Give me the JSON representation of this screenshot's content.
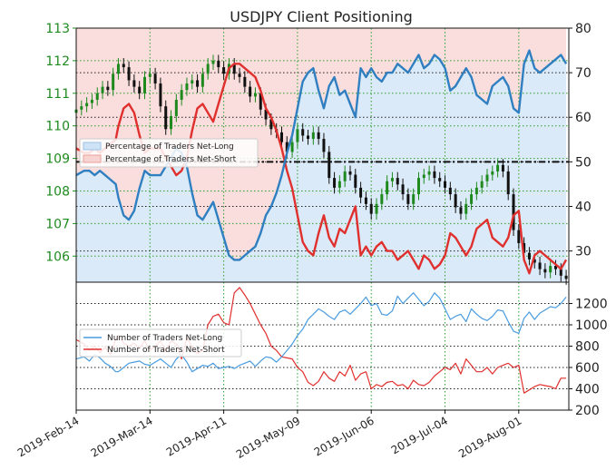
{
  "chart_data": [
    {
      "type": "line",
      "title": "USDJPY Client Positioning",
      "left_axis": {
        "ylim": [
          105.2,
          113.0
        ],
        "ticks": [
          "106",
          "107",
          "108",
          "109",
          "110",
          "111",
          "112",
          "113"
        ],
        "tick_color": "#1e8a1e"
      },
      "right_axis": {
        "ylim": [
          23,
          80
        ],
        "ticks": [
          "30",
          "40",
          "50",
          "60",
          "70",
          "80"
        ]
      },
      "x_ticks": [
        "2019-Feb-14",
        "2019-Mar-14",
        "2019-Apr-11",
        "2019-May-09",
        "2019-Jun-06",
        "2019-Jul-04",
        "2019-Aug-01"
      ],
      "x_tick_days": [
        0,
        28,
        56,
        84,
        112,
        140,
        168
      ],
      "x_range_days": [
        0,
        187
      ],
      "reference_line": 50,
      "grid": true,
      "legend": {
        "placement": "center-left",
        "entries": [
          "Percentage of Traders Net-Long",
          "Percentage of Traders Net-Short"
        ]
      },
      "colors": {
        "net_long": "#2f7fc1",
        "net_short": "#e0302e",
        "long_fill": "#cfe3f6",
        "short_fill": "#f7d3d1",
        "candle_up": "#1e8a1e",
        "candle_down": "#111111",
        "grid": "#2ca02c"
      },
      "series": [
        {
          "name": "Percentage of Traders Net-Long",
          "x": [
            0,
            3,
            5,
            7,
            9,
            11,
            13,
            15,
            16,
            18,
            20,
            22,
            24,
            26,
            28,
            30,
            32,
            34,
            36,
            38,
            40,
            42,
            44,
            46,
            48,
            50,
            52,
            54,
            56,
            58,
            60,
            62,
            64,
            66,
            68,
            70,
            72,
            74,
            76,
            78,
            80,
            82,
            84,
            86,
            88,
            90,
            92,
            94,
            96,
            98,
            100,
            102,
            104,
            106,
            108,
            110,
            112,
            114,
            116,
            118,
            120,
            122,
            124,
            126,
            128,
            130,
            132,
            134,
            136,
            138,
            140,
            142,
            144,
            146,
            148,
            150,
            152,
            154,
            156,
            158,
            160,
            162,
            164,
            166,
            168,
            170,
            172,
            174,
            176,
            178,
            180,
            182,
            184,
            186
          ],
          "values": [
            47,
            48,
            48,
            47,
            48,
            47,
            46,
            45,
            42,
            38,
            37,
            39,
            44,
            48,
            47,
            47,
            47,
            49,
            51,
            53,
            52,
            49,
            43,
            38,
            37,
            39,
            41,
            37,
            33,
            29,
            28,
            28,
            29,
            30,
            31,
            34,
            38,
            40,
            43,
            47,
            52,
            56,
            62,
            68,
            70,
            71,
            66,
            62,
            67,
            69,
            65,
            66,
            63,
            60,
            71,
            69,
            71,
            69,
            68,
            70,
            70,
            72,
            71,
            70,
            72,
            74,
            71,
            72,
            74,
            73,
            71,
            66,
            67,
            69,
            71,
            69,
            65,
            64,
            63,
            67,
            68,
            69,
            67,
            62,
            61,
            72,
            75,
            71,
            70,
            71,
            72,
            73,
            74,
            72
          ]
        },
        {
          "name": "Percentage of Traders Net-Short",
          "x": [
            0,
            3,
            5,
            7,
            9,
            11,
            13,
            15,
            16,
            18,
            20,
            22,
            24,
            26,
            28,
            30,
            32,
            34,
            36,
            38,
            40,
            42,
            44,
            46,
            48,
            50,
            52,
            54,
            56,
            58,
            60,
            62,
            64,
            66,
            68,
            70,
            72,
            74,
            76,
            78,
            80,
            82,
            84,
            86,
            88,
            90,
            92,
            94,
            96,
            98,
            100,
            102,
            104,
            106,
            108,
            110,
            112,
            114,
            116,
            118,
            120,
            122,
            124,
            126,
            128,
            130,
            132,
            134,
            136,
            138,
            140,
            142,
            144,
            146,
            148,
            150,
            152,
            154,
            156,
            158,
            160,
            162,
            164,
            166,
            168,
            170,
            172,
            174,
            176,
            178,
            180,
            182,
            184,
            186
          ],
          "values": [
            53,
            52,
            52,
            53,
            52,
            53,
            54,
            55,
            58,
            62,
            63,
            61,
            56,
            52,
            53,
            53,
            53,
            51,
            49,
            47,
            48,
            51,
            57,
            62,
            63,
            61,
            59,
            63,
            67,
            71,
            72,
            72,
            71,
            70,
            69,
            66,
            62,
            60,
            57,
            53,
            48,
            44,
            38,
            32,
            30,
            29,
            34,
            38,
            33,
            31,
            35,
            34,
            37,
            40,
            29,
            31,
            29,
            31,
            32,
            30,
            30,
            28,
            29,
            30,
            28,
            26,
            29,
            28,
            26,
            27,
            29,
            34,
            33,
            31,
            29,
            31,
            35,
            36,
            37,
            33,
            32,
            31,
            33,
            38,
            39,
            28,
            25,
            29,
            30,
            29,
            28,
            27,
            26,
            28
          ]
        }
      ],
      "price_series": {
        "x": [
          0,
          2,
          4,
          6,
          8,
          10,
          12,
          14,
          16,
          18,
          20,
          22,
          24,
          26,
          28,
          30,
          32,
          34,
          36,
          38,
          40,
          42,
          44,
          46,
          48,
          50,
          52,
          54,
          56,
          58,
          60,
          62,
          64,
          66,
          68,
          70,
          72,
          74,
          76,
          78,
          80,
          82,
          84,
          86,
          88,
          90,
          92,
          94,
          96,
          98,
          100,
          102,
          104,
          106,
          108,
          110,
          112,
          114,
          116,
          118,
          120,
          122,
          124,
          126,
          128,
          130,
          132,
          134,
          136,
          138,
          140,
          142,
          144,
          146,
          148,
          150,
          152,
          154,
          156,
          158,
          160,
          162,
          164,
          166,
          168,
          170,
          172,
          174,
          176,
          178,
          180,
          182,
          184,
          186
        ],
        "close": [
          110.5,
          110.6,
          110.7,
          110.8,
          111.0,
          111.2,
          111.1,
          111.6,
          111.9,
          111.8,
          111.4,
          111.2,
          111.0,
          111.5,
          111.6,
          111.3,
          110.6,
          109.9,
          110.3,
          110.8,
          111.1,
          111.3,
          111.4,
          111.2,
          111.6,
          111.9,
          112.0,
          111.8,
          111.6,
          111.9,
          111.6,
          111.5,
          111.2,
          110.9,
          111.0,
          110.5,
          110.2,
          109.9,
          109.8,
          109.5,
          109.2,
          109.5,
          109.9,
          109.7,
          109.6,
          109.8,
          109.6,
          109.2,
          108.4,
          108.1,
          108.3,
          108.6,
          108.5,
          108.1,
          107.8,
          107.6,
          107.3,
          107.6,
          107.9,
          108.3,
          108.4,
          108.2,
          107.9,
          107.6,
          107.9,
          108.4,
          108.5,
          108.6,
          108.4,
          108.3,
          108.1,
          107.9,
          107.5,
          107.3,
          107.6,
          107.9,
          108.1,
          108.3,
          108.5,
          108.6,
          108.8,
          108.6,
          107.9,
          106.8,
          106.4,
          106.1,
          105.9,
          105.8,
          105.6,
          105.5,
          105.7,
          105.6,
          105.4,
          105.3
        ]
      }
    },
    {
      "type": "line",
      "right_axis": {
        "ylim": [
          200,
          1400
        ],
        "ticks": [
          "200",
          "400",
          "600",
          "800",
          "1000",
          "1200"
        ]
      },
      "legend": {
        "placement": "center-left",
        "entries": [
          "Number of Traders Net-Long",
          "Number of Traders Net-Short"
        ]
      },
      "series": [
        {
          "name": "Number of Traders Net-Long",
          "x": [
            0,
            3,
            5,
            7,
            9,
            11,
            13,
            15,
            16,
            18,
            20,
            22,
            24,
            26,
            28,
            30,
            32,
            34,
            36,
            38,
            40,
            42,
            44,
            46,
            48,
            50,
            52,
            54,
            56,
            58,
            60,
            62,
            64,
            66,
            68,
            70,
            72,
            74,
            76,
            78,
            80,
            82,
            84,
            86,
            88,
            90,
            92,
            94,
            96,
            98,
            100,
            102,
            104,
            106,
            108,
            110,
            112,
            114,
            116,
            118,
            120,
            122,
            124,
            126,
            128,
            130,
            132,
            134,
            136,
            138,
            140,
            142,
            144,
            146,
            148,
            150,
            152,
            154,
            156,
            158,
            160,
            162,
            164,
            166,
            168,
            170,
            172,
            174,
            176,
            178,
            180,
            182,
            184,
            186
          ],
          "values": [
            680,
            700,
            660,
            720,
            690,
            640,
            610,
            560,
            560,
            600,
            640,
            650,
            660,
            630,
            620,
            650,
            680,
            640,
            600,
            680,
            720,
            650,
            560,
            590,
            620,
            610,
            640,
            590,
            600,
            610,
            590,
            620,
            640,
            660,
            610,
            660,
            700,
            690,
            650,
            700,
            760,
            820,
            900,
            960,
            1050,
            1100,
            1150,
            1120,
            1080,
            1050,
            1120,
            1140,
            1100,
            1150,
            1200,
            1260,
            1180,
            1200,
            1100,
            1090,
            1130,
            1270,
            1200,
            1250,
            1300,
            1240,
            1180,
            1220,
            1300,
            1250,
            1150,
            1050,
            1080,
            1100,
            1030,
            1150,
            1100,
            1060,
            1040,
            1080,
            1140,
            1130,
            1030,
            940,
            920,
            1060,
            1120,
            1050,
            1110,
            1140,
            1170,
            1160,
            1200,
            1260
          ]
        },
        {
          "name": "Number of Traders Net-Short",
          "x": [
            0,
            3,
            5,
            7,
            9,
            11,
            13,
            15,
            16,
            18,
            20,
            22,
            24,
            26,
            28,
            30,
            32,
            34,
            36,
            38,
            40,
            42,
            44,
            46,
            48,
            50,
            52,
            54,
            56,
            58,
            60,
            62,
            64,
            66,
            68,
            70,
            72,
            74,
            76,
            78,
            80,
            82,
            84,
            86,
            88,
            90,
            92,
            94,
            96,
            98,
            100,
            102,
            104,
            106,
            108,
            110,
            112,
            114,
            116,
            118,
            120,
            122,
            124,
            126,
            128,
            130,
            132,
            134,
            136,
            138,
            140,
            142,
            144,
            146,
            148,
            150,
            152,
            154,
            156,
            158,
            160,
            162,
            164,
            166,
            168,
            170,
            172,
            174,
            176,
            178,
            180,
            182,
            184,
            186
          ],
          "values": [
            860,
            820,
            760,
            800,
            740,
            790,
            720,
            860,
            900,
            830,
            800,
            830,
            780,
            850,
            760,
            800,
            850,
            750,
            850,
            820,
            680,
            880,
            790,
            730,
            760,
            1000,
            1080,
            1100,
            1020,
            1000,
            1300,
            1350,
            1280,
            1200,
            1100,
            1000,
            920,
            800,
            760,
            700,
            690,
            680,
            600,
            560,
            460,
            430,
            470,
            560,
            500,
            470,
            560,
            520,
            620,
            480,
            540,
            560,
            400,
            440,
            420,
            460,
            470,
            430,
            440,
            400,
            480,
            440,
            430,
            460,
            520,
            560,
            600,
            580,
            640,
            540,
            680,
            620,
            560,
            560,
            600,
            540,
            600,
            620,
            640,
            600,
            620,
            360,
            390,
            420,
            440,
            430,
            420,
            400,
            500,
            500
          ]
        }
      ]
    }
  ]
}
